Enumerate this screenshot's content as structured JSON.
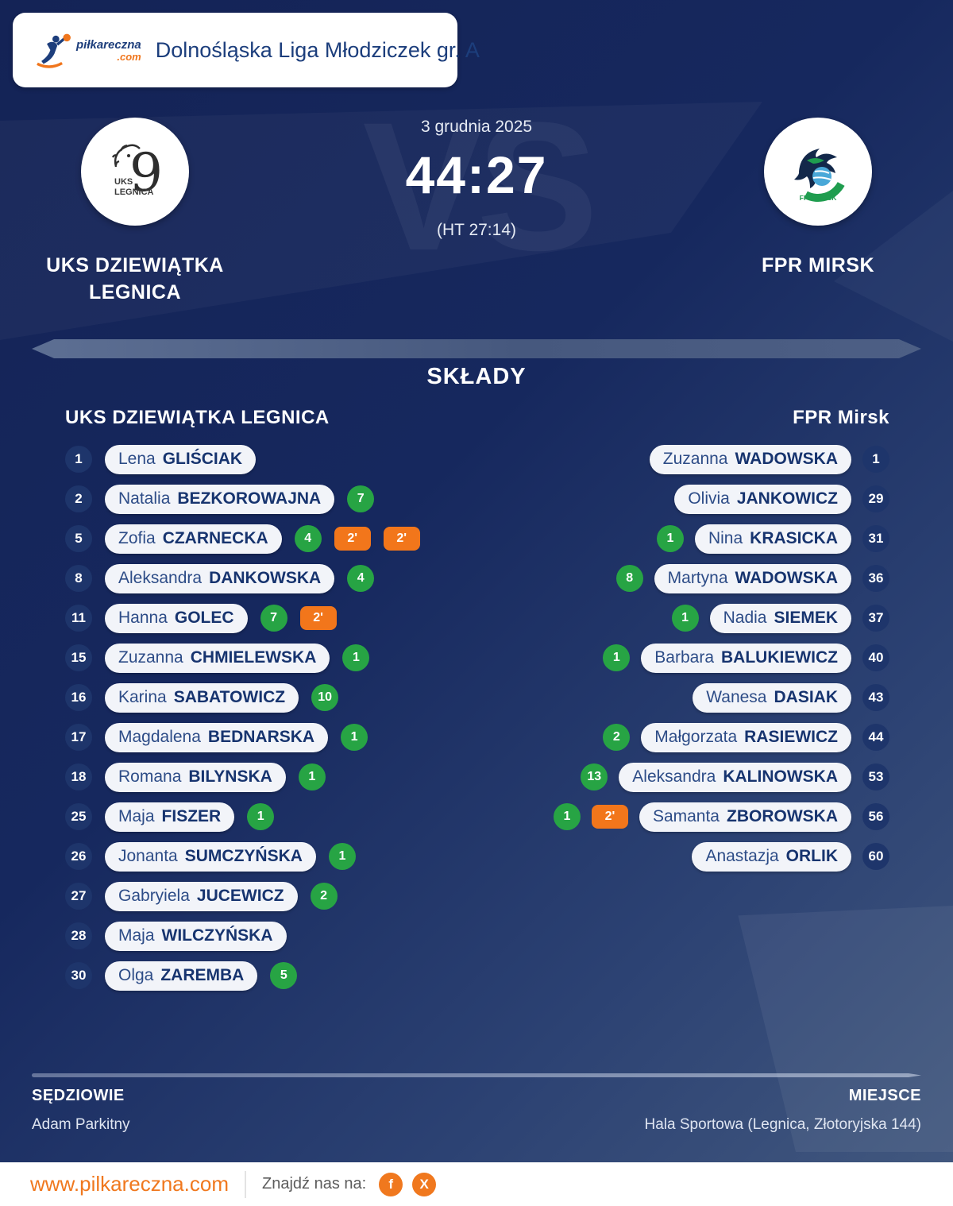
{
  "header": {
    "logo": {
      "name": "piłkareczna",
      "tld": ".com"
    },
    "league": "Dolnośląska Liga Młodziczek gr. A"
  },
  "match": {
    "date": "3 grudnia 2025",
    "score": "44:27",
    "halftime": "(HT 27:14)",
    "vs": "VS",
    "home": {
      "name": "UKS DZIEWIĄTKA LEGNICA",
      "emblem": {
        "org": "UKS",
        "city": "LEGNICA",
        "numeral": "9"
      }
    },
    "away": {
      "name": "FPR MIRSK",
      "emblem": {
        "label": "FPR MIRSK"
      }
    }
  },
  "rosters": {
    "title": "SKŁADY",
    "home_title": "UKS DZIEWIĄTKA LEGNICA",
    "away_title": "FPR Mirsk",
    "home": [
      {
        "number": "1",
        "first": "Lena",
        "last": "GLIŚCIAK",
        "goals": null,
        "cards": []
      },
      {
        "number": "2",
        "first": "Natalia",
        "last": "BEZKOROWAJNA",
        "goals": "7",
        "cards": []
      },
      {
        "number": "5",
        "first": "Zofia",
        "last": "CZARNECKA",
        "goals": "4",
        "cards": [
          "2'",
          "2'"
        ]
      },
      {
        "number": "8",
        "first": "Aleksandra",
        "last": "DANKOWSKA",
        "goals": "4",
        "cards": []
      },
      {
        "number": "11",
        "first": "Hanna",
        "last": "GOLEC",
        "goals": "7",
        "cards": [
          "2'"
        ]
      },
      {
        "number": "15",
        "first": "Zuzanna",
        "last": "CHMIELEWSKA",
        "goals": "1",
        "cards": []
      },
      {
        "number": "16",
        "first": "Karina",
        "last": "SABATOWICZ",
        "goals": "10",
        "cards": []
      },
      {
        "number": "17",
        "first": "Magdalena",
        "last": "BEDNARSKA",
        "goals": "1",
        "cards": []
      },
      {
        "number": "18",
        "first": "Romana",
        "last": "BILYNSKA",
        "goals": "1",
        "cards": []
      },
      {
        "number": "25",
        "first": "Maja",
        "last": "FISZER",
        "goals": "1",
        "cards": []
      },
      {
        "number": "26",
        "first": "Jonanta",
        "last": "SUMCZYŃSKA",
        "goals": "1",
        "cards": []
      },
      {
        "number": "27",
        "first": "Gabryiela",
        "last": "JUCEWICZ",
        "goals": "2",
        "cards": []
      },
      {
        "number": "28",
        "first": "Maja",
        "last": "WILCZYŃSKA",
        "goals": null,
        "cards": []
      },
      {
        "number": "30",
        "first": "Olga",
        "last": "ZAREMBA",
        "goals": "5",
        "cards": []
      }
    ],
    "away": [
      {
        "number": "1",
        "first": "Zuzanna",
        "last": "WADOWSKA",
        "goals": null,
        "cards": []
      },
      {
        "number": "29",
        "first": "Olivia",
        "last": "JANKOWICZ",
        "goals": null,
        "cards": []
      },
      {
        "number": "31",
        "first": "Nina",
        "last": "KRASICKA",
        "goals": "1",
        "cards": []
      },
      {
        "number": "36",
        "first": "Martyna",
        "last": "WADOWSKA",
        "goals": "8",
        "cards": []
      },
      {
        "number": "37",
        "first": "Nadia",
        "last": "SIEMEK",
        "goals": "1",
        "cards": []
      },
      {
        "number": "40",
        "first": "Barbara",
        "last": "BALUKIEWICZ",
        "goals": "1",
        "cards": []
      },
      {
        "number": "43",
        "first": "Wanesa",
        "last": "DASIAK",
        "goals": null,
        "cards": []
      },
      {
        "number": "44",
        "first": "Małgorzata",
        "last": "RASIEWICZ",
        "goals": "2",
        "cards": []
      },
      {
        "number": "53",
        "first": "Aleksandra",
        "last": "KALINOWSKA",
        "goals": "13",
        "cards": []
      },
      {
        "number": "56",
        "first": "Samanta",
        "last": "ZBOROWSKA",
        "goals": "1",
        "cards": [
          "2'"
        ]
      },
      {
        "number": "60",
        "first": "Anastazja",
        "last": "ORLIK",
        "goals": null,
        "cards": []
      }
    ]
  },
  "footer": {
    "referees_label": "SĘDZIOWIE",
    "referees": "Adam Parkitny",
    "venue_label": "MIEJSCE",
    "venue": "Hala Sportowa (Legnica, Złotoryjska 144)"
  },
  "bottom": {
    "website": "www.pilkareczna.com",
    "find_us": "Znajdź nas na:",
    "facebook_glyph": "f",
    "x_glyph": "X"
  },
  "colors": {
    "background_navy": "#16285e",
    "accent_orange": "#f0761d",
    "goal_green": "#27a444",
    "pill_white": "#f2f4f9",
    "title_blue": "#1c3e7c"
  }
}
